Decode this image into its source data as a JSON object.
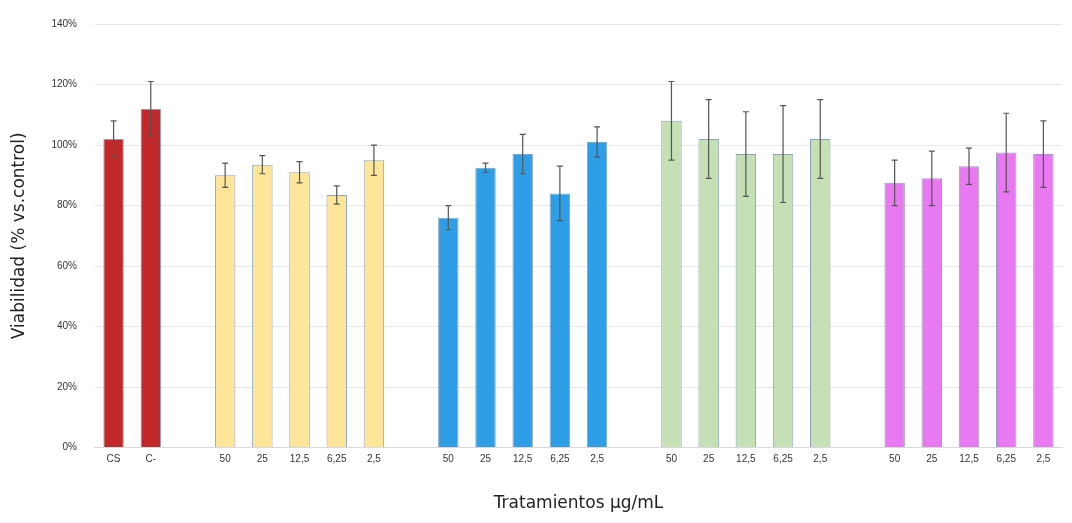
{
  "chart_data": {
    "type": "bar",
    "xlabel": "Tratamientos µg/mL",
    "ylabel": "Viabilidad (% vs.control)",
    "categories": [
      "CS",
      "C-",
      null,
      "50",
      "25",
      "12,5",
      "6,25",
      "2,5",
      null,
      "50",
      "25",
      "12,5",
      "6,25",
      "2,5",
      null,
      "50",
      "25",
      "12,5",
      "6,25",
      "2,5",
      null,
      "50",
      "25",
      "12,5",
      "6,25",
      "2,5"
    ],
    "values": [
      102,
      112,
      null,
      90,
      93.5,
      91,
      83.5,
      95,
      null,
      76,
      92.5,
      97,
      84,
      101,
      null,
      108,
      102,
      97,
      97,
      102,
      null,
      87.5,
      89,
      93,
      97.5,
      97
    ],
    "errors": [
      6,
      9,
      null,
      4,
      3,
      3.5,
      3,
      5,
      null,
      4,
      1.5,
      6.5,
      9,
      5,
      null,
      13,
      13,
      14,
      16,
      13,
      null,
      7.5,
      9,
      6,
      13,
      11
    ],
    "colors": [
      "#c0282a",
      "#c0282a",
      null,
      "#fde59a",
      "#fde59a",
      "#fde59a",
      "#fde59a",
      "#fde59a",
      null,
      "#2e9fe6",
      "#2e9fe6",
      "#2e9fe6",
      "#2e9fe6",
      "#2e9fe6",
      null,
      "#c5e0b4",
      "#c5e0b4",
      "#c5e0b4",
      "#c5e0b4",
      "#c5e0b4",
      null,
      "#e879f0",
      "#e879f0",
      "#e879f0",
      "#e879f0",
      "#e879f0"
    ],
    "ylim": [
      0,
      140
    ],
    "yticks": [
      {
        "value": 0,
        "label": "0%"
      },
      {
        "value": 20,
        "label": "20%"
      },
      {
        "value": 40,
        "label": "40%"
      },
      {
        "value": 60,
        "label": "60%"
      },
      {
        "value": 80,
        "label": "80%"
      },
      {
        "value": 100,
        "label": "100%"
      },
      {
        "value": 120,
        "label": "120%"
      },
      {
        "value": 140,
        "label": "140%"
      }
    ],
    "grid": "y",
    "legend": false
  }
}
